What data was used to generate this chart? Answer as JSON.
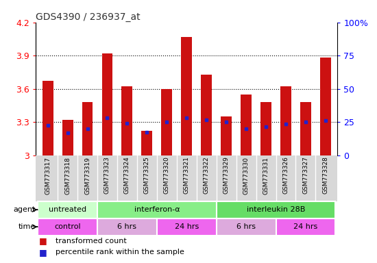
{
  "title": "GDS4390 / 236937_at",
  "samples": [
    "GSM773317",
    "GSM773318",
    "GSM773319",
    "GSM773323",
    "GSM773324",
    "GSM773325",
    "GSM773320",
    "GSM773321",
    "GSM773322",
    "GSM773329",
    "GSM773330",
    "GSM773331",
    "GSM773326",
    "GSM773327",
    "GSM773328"
  ],
  "red_values": [
    3.67,
    3.32,
    3.48,
    3.92,
    3.62,
    3.22,
    3.6,
    4.07,
    3.73,
    3.35,
    3.55,
    3.48,
    3.62,
    3.48,
    3.88
  ],
  "blue_values": [
    3.27,
    3.2,
    3.24,
    3.34,
    3.29,
    3.21,
    3.3,
    3.34,
    3.32,
    3.3,
    3.24,
    3.26,
    3.28,
    3.3,
    3.31
  ],
  "ymin": 3.0,
  "ymax": 4.2,
  "yticks": [
    3.0,
    3.3,
    3.6,
    3.9,
    4.2
  ],
  "ytick_labels": [
    "3",
    "3.3",
    "3.6",
    "3.9",
    "4.2"
  ],
  "right_ytick_labels": [
    "0",
    "25",
    "50",
    "75",
    "100%"
  ],
  "grid_lines": [
    3.3,
    3.6,
    3.9
  ],
  "agent_groups": [
    {
      "label": "untreated",
      "start": 0,
      "end": 2
    },
    {
      "label": "interferon-α",
      "start": 3,
      "end": 8
    },
    {
      "label": "interleukin 28B",
      "start": 9,
      "end": 14
    }
  ],
  "agent_colors": [
    "#ccffcc",
    "#88ee88",
    "#66dd66"
  ],
  "time_groups": [
    {
      "label": "control",
      "start": 0,
      "end": 2
    },
    {
      "label": "6 hrs",
      "start": 3,
      "end": 5
    },
    {
      "label": "24 hrs",
      "start": 6,
      "end": 8
    },
    {
      "label": "6 hrs",
      "start": 9,
      "end": 11
    },
    {
      "label": "24 hrs",
      "start": 12,
      "end": 14
    }
  ],
  "time_colors": [
    "#ee66ee",
    "#ddaadd",
    "#ee66ee",
    "#ddaadd",
    "#ee66ee"
  ],
  "bar_color": "#cc1111",
  "dot_color": "#2222cc",
  "xtick_bg_color": "#d8d8d8",
  "plot_bg_color": "#ffffff",
  "legend_red_label": "transformed count",
  "legend_blue_label": "percentile rank within the sample"
}
